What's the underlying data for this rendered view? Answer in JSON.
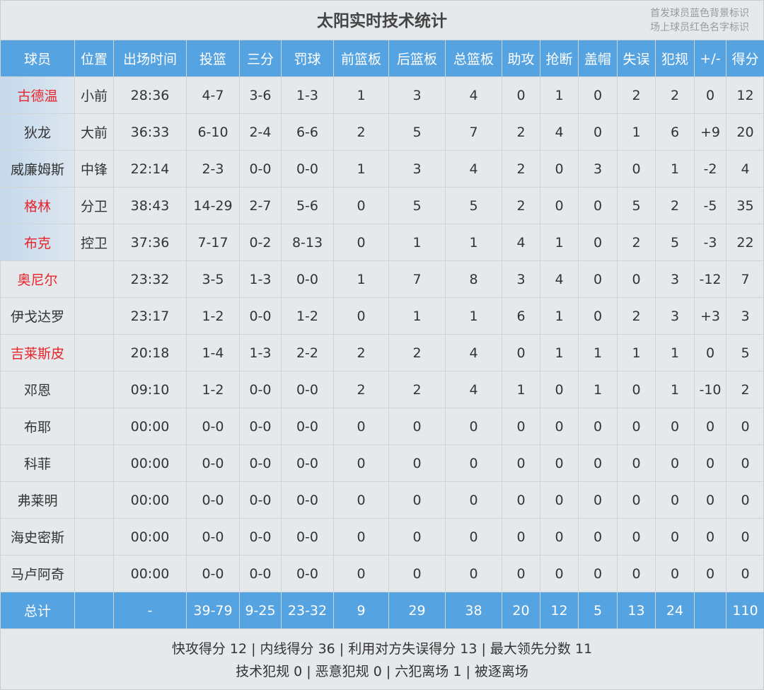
{
  "title": "太阳实时技术统计",
  "legend": [
    "首发球员蓝色背景标识",
    "场上球员红色名字标识"
  ],
  "colors": {
    "header": "#56a3e1",
    "on_court_name": "#e8242a",
    "starter_bg": "#c5d9ec"
  },
  "columns": [
    "球员",
    "位置",
    "出场时间",
    "投篮",
    "三分",
    "罚球",
    "前篮板",
    "后篮板",
    "总篮板",
    "助攻",
    "抢断",
    "盖帽",
    "失误",
    "犯规",
    "+/-",
    "得分"
  ],
  "players": [
    {
      "starter": true,
      "on_court": true,
      "cells": [
        "古德温",
        "小前",
        "28:36",
        "4-7",
        "3-6",
        "1-3",
        "1",
        "3",
        "4",
        "0",
        "1",
        "0",
        "2",
        "2",
        "0",
        "12"
      ]
    },
    {
      "starter": true,
      "on_court": false,
      "cells": [
        "狄龙",
        "大前",
        "36:33",
        "6-10",
        "2-4",
        "6-6",
        "2",
        "5",
        "7",
        "2",
        "4",
        "0",
        "1",
        "6",
        "+9",
        "20"
      ]
    },
    {
      "starter": true,
      "on_court": false,
      "cells": [
        "威廉姆斯",
        "中锋",
        "22:14",
        "2-3",
        "0-0",
        "0-0",
        "1",
        "3",
        "4",
        "2",
        "0",
        "3",
        "0",
        "1",
        "-2",
        "4"
      ]
    },
    {
      "starter": true,
      "on_court": true,
      "cells": [
        "格林",
        "分卫",
        "38:43",
        "14-29",
        "2-7",
        "5-6",
        "0",
        "5",
        "5",
        "2",
        "0",
        "0",
        "5",
        "2",
        "-5",
        "35"
      ]
    },
    {
      "starter": true,
      "on_court": true,
      "cells": [
        "布克",
        "控卫",
        "37:36",
        "7-17",
        "0-2",
        "8-13",
        "0",
        "1",
        "1",
        "4",
        "1",
        "0",
        "2",
        "5",
        "-3",
        "22"
      ]
    },
    {
      "starter": false,
      "on_court": true,
      "cells": [
        "奥尼尔",
        "",
        "23:32",
        "3-5",
        "1-3",
        "0-0",
        "1",
        "7",
        "8",
        "3",
        "4",
        "0",
        "0",
        "3",
        "-12",
        "7"
      ]
    },
    {
      "starter": false,
      "on_court": false,
      "cells": [
        "伊戈达罗",
        "",
        "23:17",
        "1-2",
        "0-0",
        "1-2",
        "0",
        "1",
        "1",
        "6",
        "1",
        "0",
        "2",
        "3",
        "+3",
        "3"
      ]
    },
    {
      "starter": false,
      "on_court": true,
      "cells": [
        "吉莱斯皮",
        "",
        "20:18",
        "1-4",
        "1-3",
        "2-2",
        "2",
        "2",
        "4",
        "0",
        "1",
        "1",
        "1",
        "1",
        "0",
        "5"
      ]
    },
    {
      "starter": false,
      "on_court": false,
      "cells": [
        "邓恩",
        "",
        "09:10",
        "1-2",
        "0-0",
        "0-0",
        "2",
        "2",
        "4",
        "1",
        "0",
        "1",
        "0",
        "1",
        "-10",
        "2"
      ]
    },
    {
      "starter": false,
      "on_court": false,
      "cells": [
        "布耶",
        "",
        "00:00",
        "0-0",
        "0-0",
        "0-0",
        "0",
        "0",
        "0",
        "0",
        "0",
        "0",
        "0",
        "0",
        "0",
        "0"
      ]
    },
    {
      "starter": false,
      "on_court": false,
      "cells": [
        "科菲",
        "",
        "00:00",
        "0-0",
        "0-0",
        "0-0",
        "0",
        "0",
        "0",
        "0",
        "0",
        "0",
        "0",
        "0",
        "0",
        "0"
      ]
    },
    {
      "starter": false,
      "on_court": false,
      "cells": [
        "弗莱明",
        "",
        "00:00",
        "0-0",
        "0-0",
        "0-0",
        "0",
        "0",
        "0",
        "0",
        "0",
        "0",
        "0",
        "0",
        "0",
        "0"
      ]
    },
    {
      "starter": false,
      "on_court": false,
      "cells": [
        "海史密斯",
        "",
        "00:00",
        "0-0",
        "0-0",
        "0-0",
        "0",
        "0",
        "0",
        "0",
        "0",
        "0",
        "0",
        "0",
        "0",
        "0"
      ]
    },
    {
      "starter": false,
      "on_court": false,
      "cells": [
        "马卢阿奇",
        "",
        "00:00",
        "0-0",
        "0-0",
        "0-0",
        "0",
        "0",
        "0",
        "0",
        "0",
        "0",
        "0",
        "0",
        "0",
        "0"
      ]
    }
  ],
  "totals": [
    "总计",
    "",
    "-",
    "39-79",
    "9-25",
    "23-32",
    "9",
    "29",
    "38",
    "20",
    "12",
    "5",
    "13",
    "24",
    "",
    "110"
  ],
  "footer": [
    "快攻得分 12 | 内线得分 36 | 利用对方失误得分 13 | 最大领先分数 11",
    "技术犯规 0 | 恶意犯规 0 | 六犯离场 1 | 被逐离场"
  ]
}
